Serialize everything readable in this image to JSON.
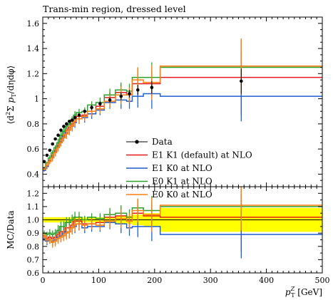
{
  "chart_data": {
    "type": "line",
    "title": "Trans-min region, dressed level",
    "xlabel": "p_T^Z [GeV]",
    "xlabel_parts": {
      "main": "p",
      "sub": "T",
      "sup": "Z",
      "unit": "[GeV]"
    },
    "xlim": [
      0,
      500
    ],
    "x_ticks": [
      0,
      100,
      200,
      300,
      400,
      500
    ],
    "bin_edges": [
      0,
      5,
      10,
      15,
      20,
      25,
      30,
      35,
      40,
      45,
      50,
      55,
      60,
      70,
      80,
      95,
      110,
      130,
      150,
      160,
      180,
      210,
      500
    ],
    "top_panel": {
      "ylabel": "⟨d²Σ p_T/dηdφ⟩",
      "ylabel_parts": {
        "open": "⟨d",
        "sup": "2",
        "mid": "Σ ",
        "p": "p",
        "psub": "T",
        "rest": "/dηdφ⟩"
      },
      "ylim": [
        0.3,
        1.65
      ],
      "y_ticks": [
        0.4,
        0.6,
        0.8,
        1.0,
        1.2,
        1.4,
        1.6
      ],
      "y_tick_labels": [
        "0.4",
        "0.6",
        "0.8",
        "1",
        "1.2",
        "1.4",
        "1.6"
      ],
      "legend_position": "bottom-center",
      "data": {
        "name": "Data",
        "x": [
          2.5,
          7.5,
          12.5,
          17.5,
          22.5,
          27.5,
          32.5,
          37.5,
          42.5,
          47.5,
          52.5,
          57.5,
          65,
          75,
          87.5,
          102.5,
          120,
          140,
          155,
          170,
          195,
          355
        ],
        "y": [
          0.5,
          0.55,
          0.59,
          0.64,
          0.68,
          0.71,
          0.75,
          0.78,
          0.8,
          0.82,
          0.83,
          0.85,
          0.87,
          0.9,
          0.93,
          0.96,
          0.99,
          1.02,
          1.04,
          1.07,
          1.09,
          1.14
        ],
        "yerr": [
          0.01,
          0.01,
          0.01,
          0.01,
          0.01,
          0.01,
          0.01,
          0.01,
          0.01,
          0.01,
          0.01,
          0.01,
          0.01,
          0.01,
          0.02,
          0.02,
          0.02,
          0.03,
          0.03,
          0.04,
          0.05,
          0.1
        ]
      },
      "series": [
        {
          "name": "E1 K1 (default) at NLO",
          "color": "#e31a1c",
          "values": [
            0.44,
            0.47,
            0.51,
            0.55,
            0.59,
            0.63,
            0.68,
            0.71,
            0.75,
            0.77,
            0.8,
            0.84,
            0.86,
            0.87,
            0.9,
            0.94,
            1.01,
            1.05,
            1.03,
            1.12,
            1.12,
            1.17
          ],
          "errors": [
            0.01,
            0.01,
            0.02,
            0.02,
            0.02,
            0.02,
            0.03,
            0.03,
            0.03,
            0.03,
            0.03,
            0.03,
            0.03,
            0.03,
            0.03,
            0.03,
            0.04,
            0.06,
            0.05,
            0.08,
            0.1,
            0.3
          ]
        },
        {
          "name": "E1 K0 at NLO",
          "color": "#1f5fd0",
          "values": [
            0.43,
            0.46,
            0.5,
            0.54,
            0.58,
            0.62,
            0.66,
            0.7,
            0.73,
            0.75,
            0.78,
            0.81,
            0.84,
            0.85,
            0.88,
            0.91,
            0.97,
            0.99,
            0.98,
            1.02,
            1.04,
            1.02
          ],
          "errors": [
            0.01,
            0.02,
            0.02,
            0.03,
            0.03,
            0.03,
            0.03,
            0.04,
            0.04,
            0.04,
            0.04,
            0.04,
            0.04,
            0.04,
            0.04,
            0.04,
            0.05,
            0.07,
            0.06,
            0.09,
            0.12,
            0.2
          ]
        },
        {
          "name": "E0 K1 at NLO",
          "color": "#2ca02c",
          "values": [
            0.45,
            0.49,
            0.53,
            0.57,
            0.61,
            0.65,
            0.71,
            0.74,
            0.78,
            0.8,
            0.83,
            0.87,
            0.89,
            0.9,
            0.95,
            0.97,
            1.03,
            1.07,
            1.06,
            1.17,
            1.17,
            1.25
          ],
          "errors": [
            0.01,
            0.01,
            0.02,
            0.02,
            0.02,
            0.03,
            0.03,
            0.03,
            0.03,
            0.03,
            0.03,
            0.03,
            0.03,
            0.03,
            0.03,
            0.04,
            0.05,
            0.06,
            0.06,
            0.08,
            0.12,
            0.12
          ]
        },
        {
          "name": "E0 K0 at NLO",
          "color": "#ff7f0e",
          "values": [
            0.44,
            0.47,
            0.5,
            0.53,
            0.57,
            0.61,
            0.65,
            0.69,
            0.72,
            0.75,
            0.78,
            0.82,
            0.84,
            0.86,
            0.9,
            0.92,
            0.98,
            1.03,
            1.03,
            1.15,
            1.13,
            1.26
          ],
          "errors": [
            0.01,
            0.02,
            0.02,
            0.03,
            0.03,
            0.03,
            0.03,
            0.03,
            0.04,
            0.04,
            0.04,
            0.04,
            0.04,
            0.04,
            0.04,
            0.04,
            0.05,
            0.07,
            0.06,
            0.1,
            0.14,
            0.22
          ]
        }
      ]
    },
    "ratio_panel": {
      "ylabel": "MC/Data",
      "ylim": [
        0.6,
        1.25
      ],
      "y_ticks": [
        0.6,
        0.7,
        0.8,
        0.9,
        1.0,
        1.1,
        1.2
      ],
      "y_tick_labels": [
        "0.6",
        "0.7",
        "0.8",
        "0.9",
        "1.0",
        "1.1",
        "1.2"
      ],
      "band_color": "#ffff00",
      "band_halfwidth": [
        0.02,
        0.02,
        0.02,
        0.02,
        0.02,
        0.02,
        0.02,
        0.02,
        0.02,
        0.02,
        0.02,
        0.02,
        0.02,
        0.02,
        0.02,
        0.02,
        0.02,
        0.03,
        0.03,
        0.04,
        0.05,
        0.09
      ],
      "series": [
        {
          "name": "E1 K1 (default) at NLO",
          "color": "#e31a1c",
          "values": [
            0.88,
            0.86,
            0.87,
            0.86,
            0.87,
            0.89,
            0.91,
            0.91,
            0.94,
            0.94,
            0.96,
            0.99,
            0.99,
            0.97,
            0.97,
            0.98,
            1.02,
            1.03,
            0.99,
            1.05,
            1.03,
            1.02
          ],
          "errors": [
            0.02,
            0.02,
            0.03,
            0.03,
            0.03,
            0.04,
            0.04,
            0.04,
            0.04,
            0.04,
            0.04,
            0.04,
            0.04,
            0.03,
            0.03,
            0.03,
            0.04,
            0.06,
            0.05,
            0.07,
            0.09,
            0.26
          ]
        },
        {
          "name": "E1 K0 at NLO",
          "color": "#1f5fd0",
          "values": [
            0.86,
            0.84,
            0.85,
            0.84,
            0.85,
            0.87,
            0.88,
            0.9,
            0.91,
            0.91,
            0.94,
            0.95,
            0.97,
            0.94,
            0.95,
            0.95,
            0.98,
            0.97,
            0.94,
            0.95,
            0.95,
            0.89
          ],
          "errors": [
            0.02,
            0.03,
            0.03,
            0.04,
            0.04,
            0.04,
            0.04,
            0.05,
            0.05,
            0.05,
            0.05,
            0.05,
            0.05,
            0.04,
            0.04,
            0.04,
            0.05,
            0.07,
            0.06,
            0.08,
            0.11,
            0.18
          ]
        },
        {
          "name": "E0 K1 at NLO",
          "color": "#2ca02c",
          "values": [
            0.9,
            0.89,
            0.9,
            0.89,
            0.9,
            0.92,
            0.95,
            0.95,
            0.98,
            0.98,
            1.0,
            1.02,
            1.02,
            1.0,
            1.02,
            1.01,
            1.04,
            1.05,
            1.02,
            1.09,
            1.07,
            1.1
          ],
          "errors": [
            0.02,
            0.02,
            0.03,
            0.03,
            0.03,
            0.04,
            0.04,
            0.04,
            0.04,
            0.04,
            0.04,
            0.04,
            0.04,
            0.03,
            0.03,
            0.04,
            0.05,
            0.06,
            0.06,
            0.07,
            0.11,
            0.11
          ]
        },
        {
          "name": "E0 K0 at NLO",
          "color": "#ff7f0e",
          "values": [
            0.88,
            0.85,
            0.85,
            0.83,
            0.84,
            0.86,
            0.87,
            0.88,
            0.9,
            0.91,
            0.94,
            0.96,
            0.97,
            0.96,
            0.97,
            0.96,
            0.99,
            1.01,
            0.99,
            1.07,
            1.04,
            1.11
          ],
          "errors": [
            0.02,
            0.03,
            0.03,
            0.04,
            0.04,
            0.04,
            0.04,
            0.04,
            0.05,
            0.05,
            0.05,
            0.05,
            0.05,
            0.04,
            0.04,
            0.04,
            0.05,
            0.07,
            0.06,
            0.09,
            0.13,
            0.19
          ]
        }
      ]
    }
  }
}
